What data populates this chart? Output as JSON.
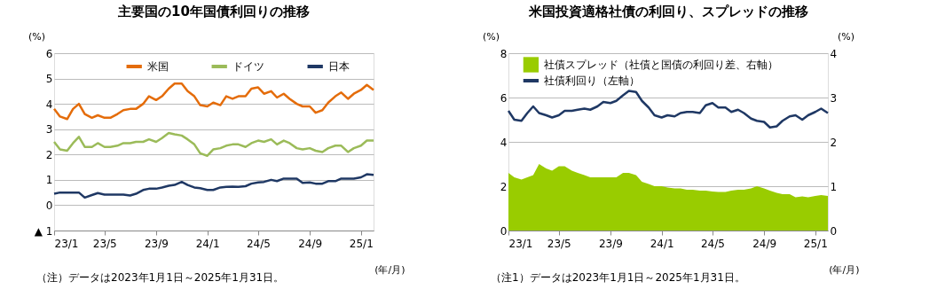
{
  "chart_data": [
    {
      "type": "line",
      "title": "主要国の10年国債利回りの推移",
      "ylabel": "(%)",
      "xlabel": "(年/月)",
      "x": [
        "2023-01-01",
        "2023-01-15",
        "2023-02-01",
        "2023-02-15",
        "2023-03-01",
        "2023-03-15",
        "2023-04-01",
        "2023-04-15",
        "2023-05-01",
        "2023-05-15",
        "2023-06-01",
        "2023-06-15",
        "2023-07-01",
        "2023-07-15",
        "2023-08-01",
        "2023-08-15",
        "2023-09-01",
        "2023-09-15",
        "2023-10-01",
        "2023-10-15",
        "2023-11-01",
        "2023-11-15",
        "2023-12-01",
        "2023-12-15",
        "2024-01-01",
        "2024-01-15",
        "2024-02-01",
        "2024-02-15",
        "2024-03-01",
        "2024-03-15",
        "2024-04-01",
        "2024-04-15",
        "2024-05-01",
        "2024-05-15",
        "2024-06-01",
        "2024-06-15",
        "2024-07-01",
        "2024-07-15",
        "2024-08-01",
        "2024-08-15",
        "2024-09-01",
        "2024-09-15",
        "2024-10-01",
        "2024-10-15",
        "2024-11-01",
        "2024-11-15",
        "2024-12-01",
        "2024-12-15",
        "2025-01-01",
        "2025-01-15",
        "2025-01-31"
      ],
      "series": [
        {
          "name": "米国",
          "color": "#e46c0a",
          "values": [
            3.8,
            3.5,
            3.4,
            3.8,
            4.0,
            3.6,
            3.45,
            3.55,
            3.45,
            3.45,
            3.6,
            3.75,
            3.8,
            3.8,
            4.0,
            4.3,
            4.15,
            4.3,
            4.6,
            4.8,
            4.8,
            4.5,
            4.3,
            3.95,
            3.9,
            4.05,
            3.95,
            4.3,
            4.2,
            4.3,
            4.3,
            4.6,
            4.65,
            4.4,
            4.5,
            4.25,
            4.4,
            4.2,
            4.0,
            3.9,
            3.9,
            3.65,
            3.75,
            4.05,
            4.3,
            4.45,
            4.2,
            4.4,
            4.55,
            4.75,
            4.55
          ]
        },
        {
          "name": "ドイツ",
          "color": "#9bbb59",
          "values": [
            2.5,
            2.2,
            2.15,
            2.45,
            2.7,
            2.3,
            2.3,
            2.45,
            2.3,
            2.3,
            2.35,
            2.45,
            2.45,
            2.5,
            2.5,
            2.6,
            2.5,
            2.65,
            2.85,
            2.8,
            2.75,
            2.6,
            2.4,
            2.05,
            1.95,
            2.2,
            2.25,
            2.35,
            2.4,
            2.4,
            2.3,
            2.45,
            2.55,
            2.5,
            2.6,
            2.4,
            2.55,
            2.45,
            2.25,
            2.2,
            2.25,
            2.15,
            2.1,
            2.25,
            2.35,
            2.35,
            2.1,
            2.25,
            2.35,
            2.55,
            2.55
          ]
        },
        {
          "name": "日本",
          "color": "#1f3864",
          "values": [
            0.45,
            0.5,
            0.5,
            0.5,
            0.5,
            0.3,
            0.4,
            0.48,
            0.42,
            0.42,
            0.42,
            0.42,
            0.38,
            0.45,
            0.6,
            0.65,
            0.65,
            0.7,
            0.77,
            0.8,
            0.92,
            0.8,
            0.7,
            0.67,
            0.6,
            0.6,
            0.7,
            0.72,
            0.73,
            0.72,
            0.75,
            0.85,
            0.9,
            0.92,
            1.0,
            0.95,
            1.05,
            1.05,
            1.05,
            0.88,
            0.9,
            0.85,
            0.85,
            0.95,
            0.95,
            1.05,
            1.05,
            1.05,
            1.1,
            1.22,
            1.2
          ]
        }
      ],
      "xlim": [
        "2023-01-01",
        "2025-01-31"
      ],
      "xticks": [
        {
          "value": "2023-01-01",
          "label": "23/1"
        },
        {
          "value": "2023-05-01",
          "label": "23/5"
        },
        {
          "value": "2023-09-01",
          "label": "23/9"
        },
        {
          "value": "2024-01-01",
          "label": "24/1"
        },
        {
          "value": "2024-05-01",
          "label": "24/5"
        },
        {
          "value": "2024-09-01",
          "label": "24/9"
        },
        {
          "value": "2025-01-01",
          "label": "25/1"
        }
      ],
      "ylim": [
        -1,
        6
      ],
      "yticks": [
        {
          "value": -1,
          "label": "▲ 1"
        },
        0,
        1,
        2,
        3,
        4,
        5,
        6
      ],
      "grid": "y",
      "legend": "top",
      "line_style": "solid",
      "marker": "none",
      "annotations": [
        "（注）データは2023年1月1日～2025年1月31日。"
      ]
    },
    {
      "type": "line",
      "title": "米国投資適格社債の利回り、スプレッドの推移",
      "ylabel": "(%)",
      "y2label": "(%)",
      "xlabel": "(年/月)",
      "x": [
        "2023-01-01",
        "2023-01-15",
        "2023-02-01",
        "2023-02-15",
        "2023-03-01",
        "2023-03-15",
        "2023-04-01",
        "2023-04-15",
        "2023-05-01",
        "2023-05-15",
        "2023-06-01",
        "2023-06-15",
        "2023-07-01",
        "2023-07-15",
        "2023-08-01",
        "2023-08-15",
        "2023-09-01",
        "2023-09-15",
        "2023-10-01",
        "2023-10-15",
        "2023-11-01",
        "2023-11-15",
        "2023-12-01",
        "2023-12-15",
        "2024-01-01",
        "2024-01-15",
        "2024-02-01",
        "2024-02-15",
        "2024-03-01",
        "2024-03-15",
        "2024-04-01",
        "2024-04-15",
        "2024-05-01",
        "2024-05-15",
        "2024-06-01",
        "2024-06-15",
        "2024-07-01",
        "2024-07-15",
        "2024-08-01",
        "2024-08-15",
        "2024-09-01",
        "2024-09-15",
        "2024-10-01",
        "2024-10-15",
        "2024-11-01",
        "2024-11-15",
        "2024-12-01",
        "2024-12-15",
        "2025-01-01",
        "2025-01-15",
        "2025-01-31"
      ],
      "series": [
        {
          "name": "社債スプレッド（社債と国債の利回り差、右軸）",
          "type": "area",
          "axis": "y2",
          "color": "#99cc00",
          "values": [
            1.3,
            1.2,
            1.15,
            1.2,
            1.25,
            1.5,
            1.4,
            1.35,
            1.45,
            1.45,
            1.35,
            1.3,
            1.25,
            1.2,
            1.2,
            1.2,
            1.2,
            1.2,
            1.3,
            1.3,
            1.25,
            1.1,
            1.05,
            1.0,
            1.0,
            0.97,
            0.95,
            0.95,
            0.92,
            0.92,
            0.9,
            0.9,
            0.88,
            0.87,
            0.87,
            0.9,
            0.92,
            0.92,
            0.95,
            1.0,
            0.95,
            0.9,
            0.85,
            0.82,
            0.82,
            0.75,
            0.77,
            0.75,
            0.78,
            0.8,
            0.78
          ]
        },
        {
          "name": "社債利回り（左軸）",
          "type": "line",
          "color": "#1f3864",
          "values": [
            5.4,
            5.0,
            4.95,
            5.3,
            5.6,
            5.3,
            5.2,
            5.1,
            5.2,
            5.4,
            5.4,
            5.45,
            5.5,
            5.45,
            5.6,
            5.8,
            5.75,
            5.85,
            6.1,
            6.3,
            6.25,
            5.85,
            5.55,
            5.2,
            5.1,
            5.2,
            5.15,
            5.3,
            5.35,
            5.35,
            5.3,
            5.65,
            5.75,
            5.55,
            5.55,
            5.35,
            5.45,
            5.3,
            5.05,
            4.95,
            4.9,
            4.65,
            4.7,
            4.95,
            5.15,
            5.2,
            5.0,
            5.2,
            5.35,
            5.5,
            5.3
          ]
        }
      ],
      "xlim": [
        "2023-01-01",
        "2025-01-31"
      ],
      "xticks": [
        {
          "value": "2023-01-01",
          "label": "23/1"
        },
        {
          "value": "2023-05-01",
          "label": "23/5"
        },
        {
          "value": "2023-09-01",
          "label": "23/9"
        },
        {
          "value": "2024-01-01",
          "label": "24/1"
        },
        {
          "value": "2024-05-01",
          "label": "24/5"
        },
        {
          "value": "2024-09-01",
          "label": "24/9"
        },
        {
          "value": "2025-01-01",
          "label": "25/1"
        }
      ],
      "ylim": [
        0,
        8
      ],
      "yticks": [
        0,
        2,
        4,
        6,
        8
      ],
      "y2lim": [
        0,
        4
      ],
      "y2ticks": [
        0,
        1,
        2,
        3,
        4
      ],
      "grid": "y",
      "legend": "top left",
      "line_style": "solid",
      "marker": "none",
      "annotations": [
        "（注1）データは2023年1月1日～2025年1月31日。"
      ]
    }
  ]
}
